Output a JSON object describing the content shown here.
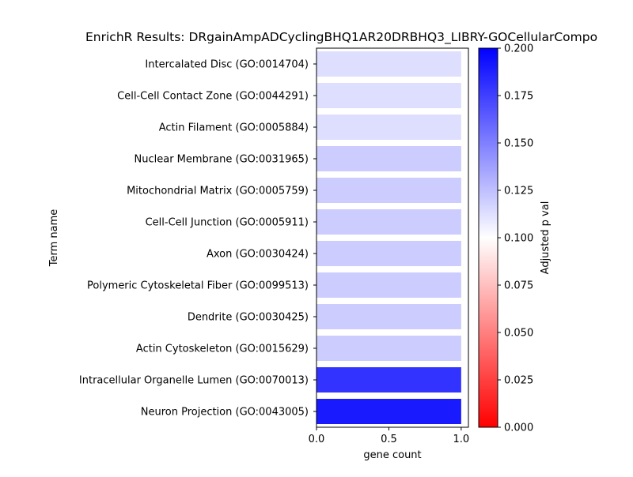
{
  "chart_data": {
    "type": "bar",
    "orientation": "horizontal",
    "title": "EnrichR Results: DRgainAmpADCyclingBHQ1AR20DRBHQ3_LIBRY-GOCellularCompo",
    "xlabel": "gene count",
    "ylabel": "Term name",
    "xlim": [
      0,
      1.05
    ],
    "xticks": [
      "0.0",
      "0.5",
      "1.0"
    ],
    "categories": [
      "Intercalated Disc (GO:0014704)",
      "Cell-Cell Contact Zone (GO:0044291)",
      "Actin Filament (GO:0005884)",
      "Nuclear Membrane (GO:0031965)",
      "Mitochondrial Matrix (GO:0005759)",
      "Cell-Cell Junction (GO:0005911)",
      "Axon (GO:0030424)",
      "Polymeric Cytoskeletal Fiber (GO:0099513)",
      "Dendrite (GO:0030425)",
      "Actin Cytoskeleton (GO:0015629)",
      "Intracellular Organelle Lumen (GO:0070013)",
      "Neuron Projection (GO:0043005)"
    ],
    "values": [
      1,
      1,
      1,
      1,
      1,
      1,
      1,
      1,
      1,
      1,
      1,
      1
    ],
    "color_values": [
      0.113,
      0.113,
      0.113,
      0.12,
      0.12,
      0.12,
      0.12,
      0.12,
      0.12,
      0.12,
      0.18,
      0.19
    ],
    "colorbar": {
      "label": "Adjusted p val",
      "range": [
        0,
        0.2
      ],
      "ticks": [
        "0.000",
        "0.025",
        "0.050",
        "0.075",
        "0.100",
        "0.125",
        "0.150",
        "0.175",
        "0.200"
      ],
      "colors": [
        "#ff0000",
        "#ffffff",
        "#0000ff"
      ]
    },
    "grid": false,
    "legend": "colorbar-right"
  }
}
